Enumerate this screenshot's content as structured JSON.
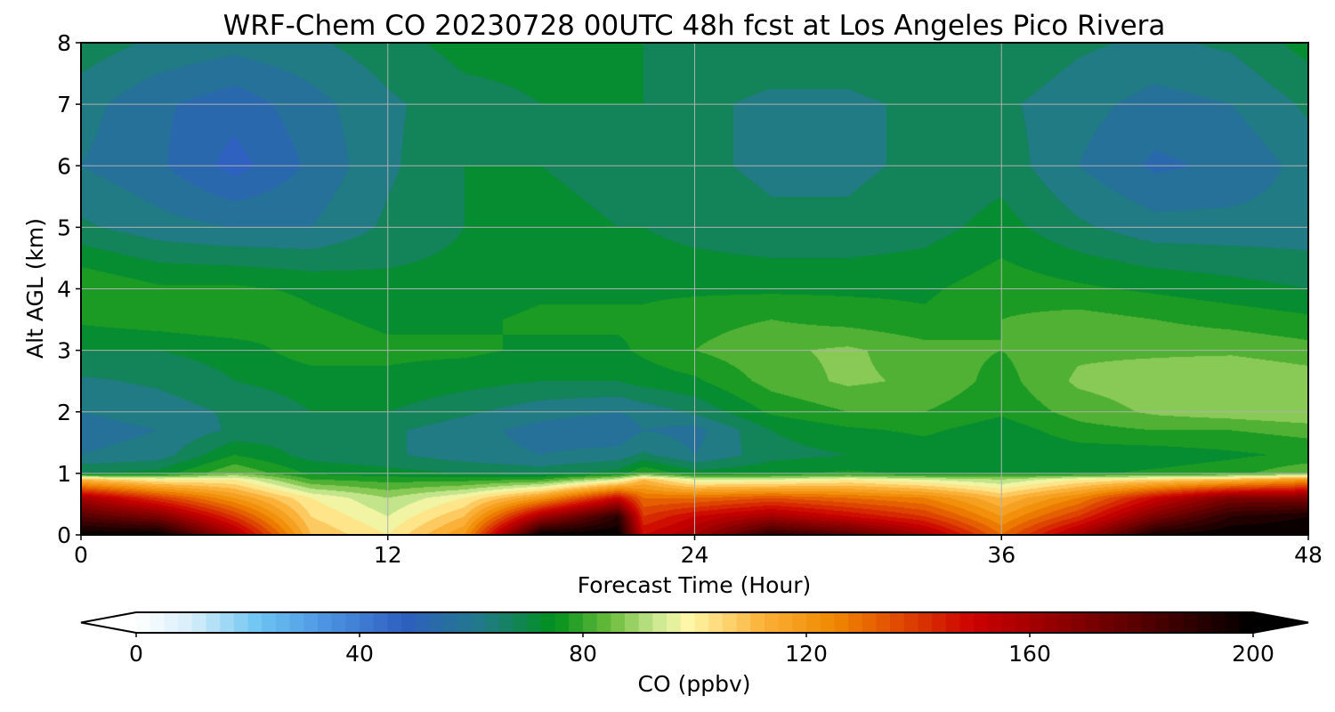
{
  "chart_data": {
    "type": "heatmap",
    "title": "WRF-Chem CO  20230728 00UTC 48h fcst at Los Angeles Pico Rivera",
    "xlabel": "Forecast Time (Hour)",
    "ylabel": "Alt AGL (km)",
    "xlim": [
      0,
      48
    ],
    "ylim": [
      0,
      8
    ],
    "xticks": [
      0,
      12,
      24,
      36,
      48
    ],
    "yticks": [
      0,
      1,
      2,
      3,
      4,
      5,
      6,
      7,
      8
    ],
    "grid": true,
    "x": [
      0,
      3,
      6,
      9,
      12,
      15,
      18,
      21,
      22,
      24,
      27,
      30,
      33,
      36,
      39,
      42,
      45,
      48
    ],
    "y": [
      0.0,
      0.3,
      0.6,
      0.9,
      1.0,
      1.3,
      1.7,
      2.0,
      2.5,
      3.0,
      3.5,
      4.0,
      5.0,
      6.0,
      7.0,
      8.0
    ],
    "z": [
      [
        200,
        200,
        160,
        110,
        100,
        120,
        200,
        200,
        150,
        160,
        190,
        180,
        160,
        130,
        160,
        195,
        200,
        200
      ],
      [
        180,
        170,
        140,
        105,
        95,
        110,
        160,
        190,
        140,
        150,
        160,
        150,
        140,
        120,
        140,
        170,
        190,
        195
      ],
      [
        160,
        140,
        120,
        100,
        90,
        100,
        120,
        150,
        130,
        130,
        135,
        130,
        125,
        110,
        125,
        150,
        170,
        170
      ],
      [
        110,
        100,
        100,
        80,
        78,
        78,
        80,
        95,
        110,
        95,
        95,
        100,
        95,
        90,
        100,
        105,
        110,
        120
      ],
      [
        70,
        72,
        85,
        74,
        72,
        70,
        68,
        72,
        80,
        72,
        74,
        76,
        74,
        75,
        74,
        76,
        78,
        85
      ],
      [
        60,
        62,
        75,
        68,
        66,
        62,
        60,
        62,
        66,
        60,
        68,
        70,
        72,
        70,
        72,
        72,
        74,
        76
      ],
      [
        58,
        60,
        66,
        68,
        66,
        62,
        58,
        56,
        60,
        58,
        70,
        74,
        76,
        72,
        78,
        80,
        80,
        82
      ],
      [
        60,
        62,
        66,
        70,
        70,
        66,
        62,
        60,
        62,
        66,
        76,
        80,
        80,
        76,
        82,
        86,
        88,
        90
      ],
      [
        64,
        66,
        70,
        72,
        74,
        72,
        70,
        70,
        72,
        74,
        82,
        86,
        84,
        78,
        86,
        88,
        90,
        88
      ],
      [
        70,
        70,
        72,
        78,
        76,
        76,
        74,
        74,
        76,
        80,
        84,
        86,
        82,
        80,
        84,
        84,
        84,
        82
      ],
      [
        76,
        78,
        80,
        76,
        74,
        74,
        76,
        76,
        76,
        78,
        80,
        78,
        76,
        80,
        82,
        80,
        78,
        76
      ],
      [
        80,
        76,
        76,
        74,
        72,
        72,
        74,
        74,
        74,
        74,
        74,
        74,
        74,
        78,
        76,
        74,
        72,
        70
      ],
      [
        66,
        62,
        60,
        60,
        66,
        70,
        72,
        70,
        70,
        68,
        66,
        66,
        68,
        72,
        66,
        62,
        62,
        62
      ],
      [
        60,
        56,
        48,
        56,
        64,
        70,
        70,
        68,
        68,
        66,
        64,
        64,
        66,
        68,
        60,
        54,
        56,
        62
      ],
      [
        62,
        56,
        52,
        58,
        64,
        68,
        70,
        70,
        70,
        66,
        64,
        64,
        66,
        66,
        62,
        58,
        60,
        66
      ],
      [
        68,
        64,
        62,
        64,
        68,
        72,
        72,
        70,
        70,
        68,
        68,
        68,
        70,
        70,
        66,
        64,
        66,
        72
      ]
    ],
    "colorbar": {
      "label": "CO  (ppbv)",
      "min": 0,
      "max": 200,
      "ticks": [
        0,
        40,
        80,
        120,
        160,
        200
      ],
      "extend": "both",
      "stops": [
        {
          "v": 0,
          "c": "#ffffff"
        },
        {
          "v": 10,
          "c": "#d6eefa"
        },
        {
          "v": 22,
          "c": "#6cc4f2"
        },
        {
          "v": 35,
          "c": "#4a90e0"
        },
        {
          "v": 48,
          "c": "#2e5fc0"
        },
        {
          "v": 62,
          "c": "#217a88"
        },
        {
          "v": 75,
          "c": "#00901c"
        },
        {
          "v": 85,
          "c": "#6cbc3c"
        },
        {
          "v": 93,
          "c": "#c8e890"
        },
        {
          "v": 99,
          "c": "#fff8a8"
        },
        {
          "v": 112,
          "c": "#fbb23a"
        },
        {
          "v": 125,
          "c": "#f08800"
        },
        {
          "v": 150,
          "c": "#cc0000"
        },
        {
          "v": 175,
          "c": "#6a0000"
        },
        {
          "v": 200,
          "c": "#000000"
        }
      ]
    }
  }
}
